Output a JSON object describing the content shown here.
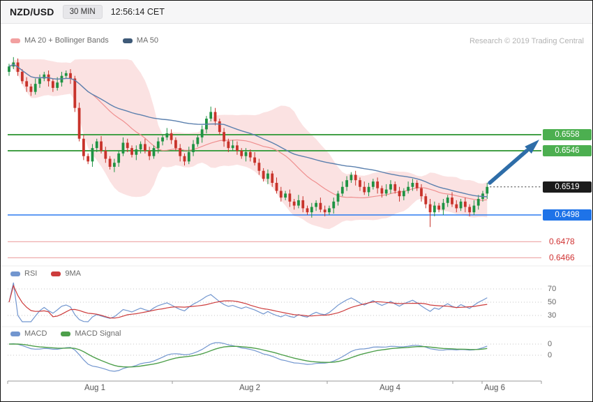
{
  "header": {
    "pair": "NZD/USD",
    "timeframe": "30 MIN",
    "clock": "12:56:14 CET"
  },
  "credit": "Research © 2019 Trading Central",
  "legends": {
    "main": [
      {
        "label": "MA 20 + Bollinger Bands",
        "swatch": "ma20_swatch"
      },
      {
        "label": "MA 50",
        "swatch": "ma50_swatch"
      }
    ],
    "rsi": [
      {
        "label": "RSI",
        "swatch": "rsi"
      },
      {
        "label": "9MA",
        "swatch": "nine_ma"
      }
    ],
    "macd": [
      {
        "label": "MACD",
        "swatch": "macd"
      },
      {
        "label": "MACD Signal",
        "swatch": "macd_signal"
      }
    ]
  },
  "chart_data": {
    "type": "candlestick",
    "pair": "NZD/USD",
    "interval": "30 MIN",
    "x_labels": [
      "Aug 1",
      "Aug 2",
      "Aug 4",
      "Aug 6"
    ],
    "levels": [
      {
        "price": 0.6558,
        "label": "0.6558",
        "type": "resistance"
      },
      {
        "price": 0.6546,
        "label": "0.6546",
        "type": "resistance"
      },
      {
        "price": 0.6519,
        "label": "0.6519",
        "type": "last"
      },
      {
        "price": 0.6498,
        "label": "0.6498",
        "type": "support"
      },
      {
        "price": 0.6478,
        "label": "0.6478",
        "type": "minor"
      },
      {
        "price": 0.6466,
        "label": "0.6466",
        "type": "minor"
      }
    ],
    "rsi_ticks": [
      "70",
      "50",
      "30"
    ],
    "rsi_tick_values": [
      70,
      50,
      30
    ],
    "macd_ticks": [
      "0",
      "0"
    ],
    "indicators": [
      "MA 20",
      "Bollinger Bands",
      "MA 50",
      "RSI",
      "9MA",
      "MACD",
      "MACD Signal"
    ],
    "annotation_arrow": {
      "direction": "up-right",
      "from_price": 0.6516,
      "to_price": 0.655
    },
    "first_open": 0.6605,
    "closes": [
      0.6609,
      0.6612,
      0.6605,
      0.6598,
      0.6594,
      0.659,
      0.6596,
      0.66,
      0.6603,
      0.6598,
      0.6593,
      0.6597,
      0.6602,
      0.6604,
      0.66,
      0.6578,
      0.6555,
      0.6542,
      0.6538,
      0.6548,
      0.6553,
      0.6546,
      0.654,
      0.6534,
      0.6537,
      0.6544,
      0.6552,
      0.6548,
      0.6543,
      0.6547,
      0.6551,
      0.6546,
      0.6542,
      0.6548,
      0.6553,
      0.6556,
      0.6559,
      0.6554,
      0.6548,
      0.6542,
      0.6538,
      0.6545,
      0.6551,
      0.6556,
      0.6562,
      0.657,
      0.6575,
      0.6568,
      0.656,
      0.6553,
      0.6548,
      0.655,
      0.6546,
      0.6542,
      0.6545,
      0.6541,
      0.6537,
      0.6531,
      0.6525,
      0.6529,
      0.6522,
      0.6516,
      0.6511,
      0.6514,
      0.6508,
      0.6505,
      0.6509,
      0.6503,
      0.65,
      0.6504,
      0.6507,
      0.6502,
      0.65,
      0.6503,
      0.6508,
      0.6514,
      0.6519,
      0.6524,
      0.6528,
      0.6524,
      0.6519,
      0.6515,
      0.6519,
      0.6523,
      0.6518,
      0.6514,
      0.6517,
      0.6521,
      0.6516,
      0.6512,
      0.6516,
      0.6519,
      0.6522,
      0.6518,
      0.6512,
      0.6506,
      0.65,
      0.6505,
      0.6502,
      0.6507,
      0.6511,
      0.6506,
      0.6503,
      0.6508,
      0.6504,
      0.65,
      0.6505,
      0.651,
      0.6514,
      0.6519
    ],
    "spike_low": {
      "index": 96,
      "low": 0.6489
    }
  },
  "colors": {
    "candle_up": "#1f9343",
    "candle_down": "#c8332b",
    "bb_fill": "#f8c6c6",
    "ma20": "#ef8f8f",
    "ma50": "#5b80ae",
    "ma20_swatch": "#f2a0a0",
    "ma50_swatch": "#3e5a78",
    "rsi": "#7296cf",
    "nine_ma": "#cd3c3c",
    "macd": "#7296cf",
    "macd_signal": "#4d9f4a",
    "resistance_line": "#43a047",
    "resistance_badge": "#4caf50",
    "support_line": "#2b7af0",
    "support_badge": "#1e73e8",
    "minor_line": "#eda2a2",
    "minor_text": "#d03434",
    "last_badge": "#1b1b1b",
    "arrow": "#2e6da8"
  }
}
